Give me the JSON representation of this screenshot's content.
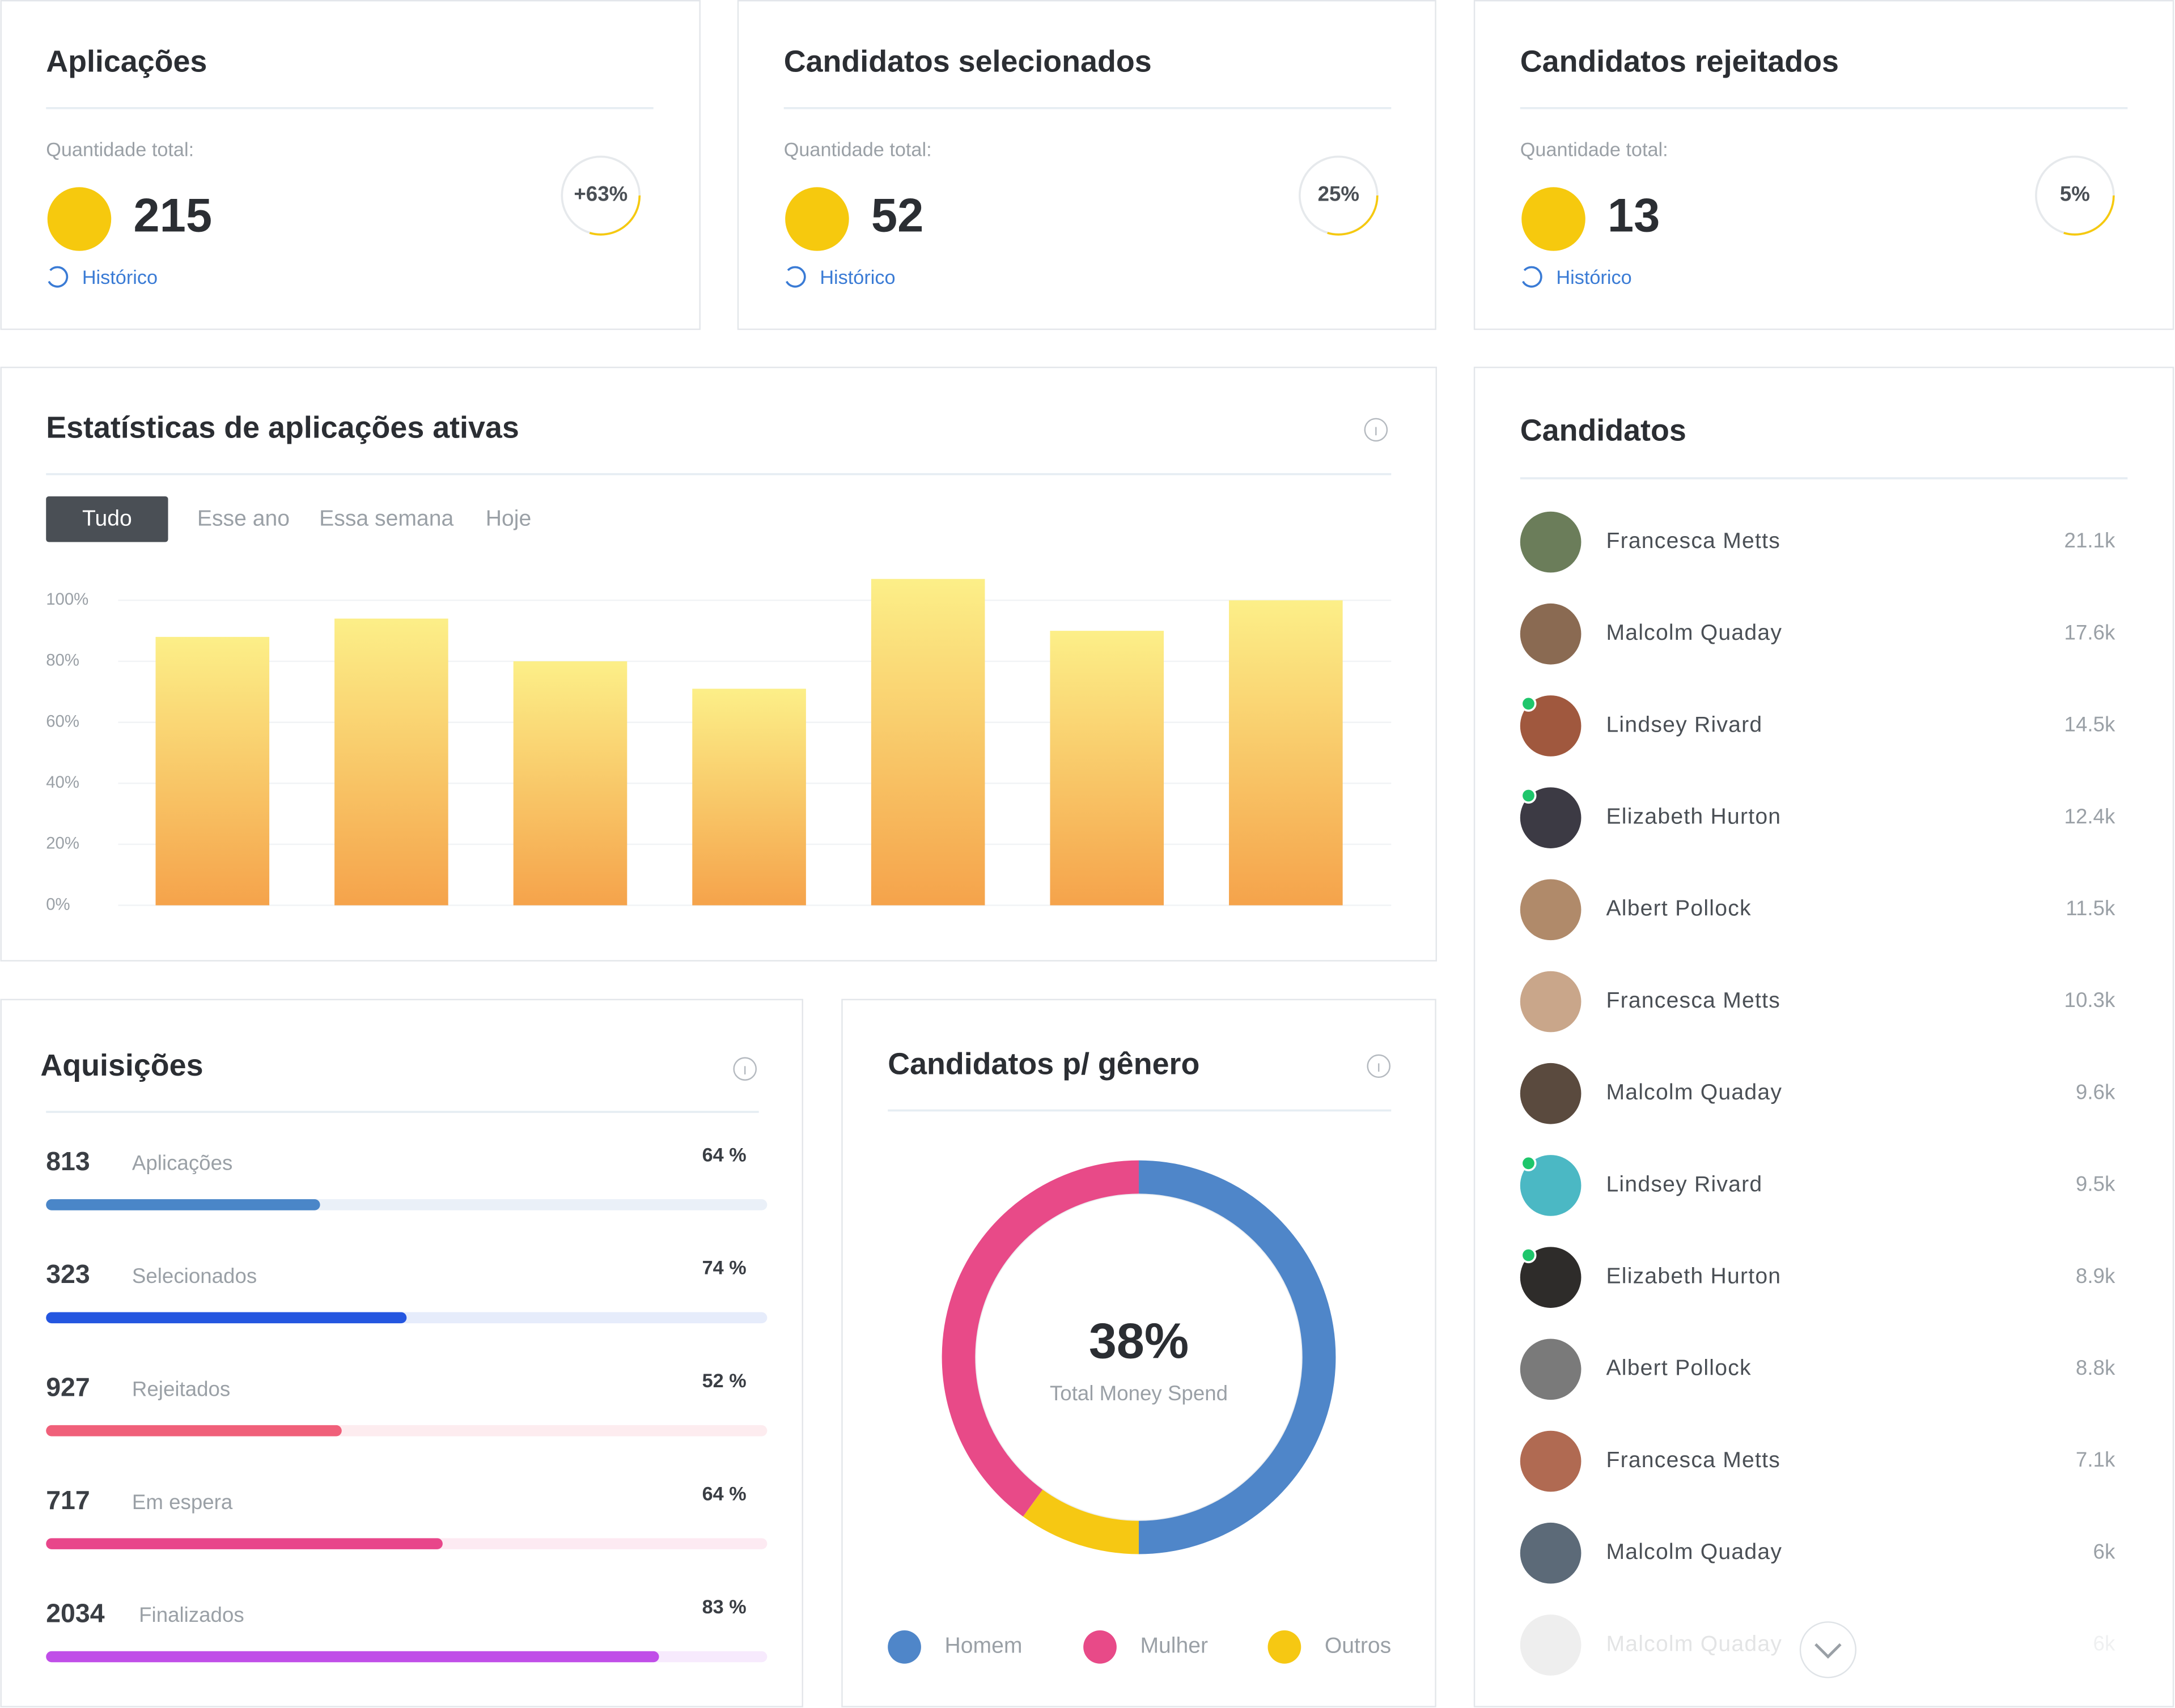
{
  "cards": [
    {
      "title": "Aplicações",
      "label": "Quantidade total:",
      "value": 215,
      "link": "Histórico",
      "badge": "+63%"
    },
    {
      "title": "Candidatos selecionados",
      "label": "Quantidade total:",
      "value": 52,
      "link": "Histórico",
      "badge": "25%"
    },
    {
      "title": "Candidatos rejeitados",
      "label": "Quantidade total:",
      "value": 13,
      "link": "Histórico",
      "badge": "5%"
    }
  ],
  "chart_data": {
    "type": "bar",
    "title": "Estatísticas de aplicações ativas",
    "tabs": [
      "Tudo",
      "Esse ano",
      "Essa semana",
      "Hoje"
    ],
    "categories": [
      null,
      null,
      null,
      null,
      null,
      null,
      null
    ],
    "values": [
      88,
      94,
      80,
      71,
      107,
      90,
      100
    ],
    "ylim": [
      0,
      110
    ],
    "yticks": [
      {
        "value": 0,
        "label": "0%"
      },
      {
        "value": 20,
        "label": "20%"
      },
      {
        "value": 40,
        "label": "40%"
      },
      {
        "value": 60,
        "label": "60%"
      },
      {
        "value": 80,
        "label": "80%"
      },
      {
        "value": 100,
        "label": "100%"
      }
    ],
    "grid": true
  },
  "acquisitions": {
    "title": "Aquisições",
    "rows": [
      {
        "count": 813,
        "label": "Aplicações",
        "percent": "64 %",
        "fill": 38,
        "color": "#4a86c8",
        "track": "#eaf0f8"
      },
      {
        "count": 323,
        "label": "Selecionados",
        "percent": "74 %",
        "fill": 50,
        "color": "#2456e0",
        "track": "#e6ecfb"
      },
      {
        "count": 927,
        "label": "Rejeitados",
        "percent": "52 %",
        "fill": 41,
        "color": "#f0607a",
        "track": "#fdecef"
      },
      {
        "count": 717,
        "label": "Em espera",
        "percent": "64 %",
        "fill": 55,
        "color": "#e8468a",
        "track": "#fdeaf2"
      },
      {
        "count": 2034,
        "label": "Finalizados",
        "percent": "83 %",
        "fill": 85,
        "color": "#c04ee8",
        "track": "#f7eafd"
      }
    ]
  },
  "gender": {
    "type": "donut",
    "title": "Candidatos p/ gênero",
    "center_value": "38%",
    "center_label": "Total Money Spend",
    "series": [
      {
        "name": "Homem",
        "color": "#4f86c9",
        "value": 50
      },
      {
        "name": "Mulher",
        "color": "#e84a88",
        "value": 40
      },
      {
        "name": "Outros",
        "color": "#f6c813",
        "value": 10
      }
    ]
  },
  "candidates": {
    "title": "Candidatos",
    "rows": [
      {
        "name": "Francesca Metts",
        "value": "21.1k",
        "online": false
      },
      {
        "name": "Malcolm Quaday",
        "value": "17.6k",
        "online": false
      },
      {
        "name": "Lindsey Rivard",
        "value": "14.5k",
        "online": true
      },
      {
        "name": "Elizabeth Hurton",
        "value": "12.4k",
        "online": true
      },
      {
        "name": "Albert Pollock",
        "value": "11.5k",
        "online": false
      },
      {
        "name": "Francesca Metts",
        "value": "10.3k",
        "online": false
      },
      {
        "name": "Malcolm Quaday",
        "value": "9.6k",
        "online": false
      },
      {
        "name": "Lindsey Rivard",
        "value": "9.5k",
        "online": true
      },
      {
        "name": "Elizabeth Hurton",
        "value": "8.9k",
        "online": true
      },
      {
        "name": "Albert Pollock",
        "value": "8.8k",
        "online": false
      },
      {
        "name": "Francesca Metts",
        "value": "7.1k",
        "online": false
      },
      {
        "name": "Malcolm Quaday",
        "value": "6k",
        "online": false
      },
      {
        "name": "Malcolm Quaday",
        "value": "6k",
        "online": false
      }
    ]
  }
}
